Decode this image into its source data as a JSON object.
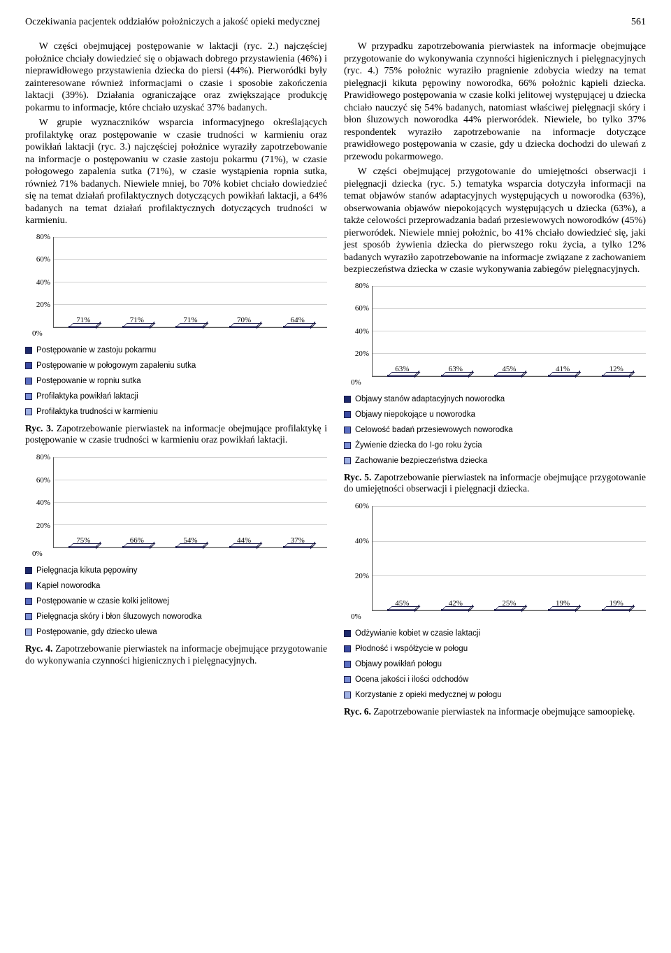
{
  "header": {
    "title": "Oczekiwania pacjentek oddziałów położniczych a jakość opieki medycznej",
    "page": "561"
  },
  "left": {
    "p1": "W części obejmującej postępowanie w laktacji (ryc. 2.) najczęściej położnice chciały dowiedzieć się o objawach dobrego przystawienia (46%) i nieprawidłowego przystawienia dziecka do piersi (44%). Pierworódki były zainteresowane również informacjami o czasie i sposobie zakończenia laktacji (39%). Działania ograniczające oraz zwiększające produkcję pokarmu to informacje, które chciało uzyskać 37% badanych.",
    "p2": "W grupie wyznaczników wsparcia informacyjnego określających profilaktykę oraz postępowanie w czasie trudności w karmieniu oraz powikłań laktacji (ryc. 3.) najczęściej położnice wyraziły zapotrzebowanie na informacje o postępowaniu w czasie zastoju pokarmu (71%), w czasie połogowego zapalenia sutka (71%), w czasie wystąpienia ropnia sutka, również 71% badanych. Niewiele mniej, bo 70% kobiet chciało dowiedzieć się na temat działań profilaktycznych dotyczących powikłań laktacji, a 64% badanych na temat działań profilaktycznych dotyczących trudności w karmieniu."
  },
  "right": {
    "p1": "W przypadku zapotrzebowania pierwiastek na informacje obejmujące przygotowanie do wykonywania czynności higienicznych i pielęgnacyjnych (ryc. 4.) 75% położnic wyraziło pragnienie zdobycia wiedzy na temat pielęgnacji kikuta pępowiny noworodka, 66% położnic kąpieli dziecka. Prawidłowego postępowania w czasie kolki jelitowej występującej u dziecka chciało nauczyć się 54% badanych, natomiast właściwej pielęgnacji skóry i błon śluzowych noworodka 44% pierworódek. Niewiele, bo tylko 37% respondentek wyraziło zapotrzebowanie na informacje dotyczące prawidłowego postępowania w czasie, gdy u dziecka dochodzi do ulewań z przewodu pokarmowego.",
    "p2": "W części obejmującej przygotowanie do umiejętności obserwacji i pielęgnacji dziecka (ryc. 5.) tematyka wsparcia dotyczyła informacji na temat objawów stanów adaptacyjnych występujących u noworodka (63%), obserwowania objawów niepokojących występujących u dziecka (63%), a także celowości przeprowadzania badań przesiewowych noworodków (45%) pierworódek. Niewiele mniej położnic, bo 41% chciało dowiedzieć się, jaki jest sposób żywienia dziecka do pierwszego roku życia, a tylko 12% badanych wyraziło zapotrzebowanie na informacje związane z zachowaniem bezpieczeństwa dziecka w czasie wykonywania zabiegów pielęgnacyjnych."
  },
  "chart3": {
    "type": "bar",
    "ymax": 80,
    "tick_step": 20,
    "ticks": [
      "0%",
      "20%",
      "40%",
      "60%",
      "80%"
    ],
    "bars": [
      {
        "label": "71%",
        "value": 71,
        "color": "#1d2a6b"
      },
      {
        "label": "71%",
        "value": 71,
        "color": "#3a4aa0"
      },
      {
        "label": "71%",
        "value": 71,
        "color": "#5b6fc2"
      },
      {
        "label": "70%",
        "value": 70,
        "color": "#7b8fd6"
      },
      {
        "label": "64%",
        "value": 64,
        "color": "#9fb1e4"
      }
    ],
    "legend": [
      {
        "color": "#1d2a6b",
        "label": "Postępowanie w zastoju pokarmu"
      },
      {
        "color": "#3a4aa0",
        "label": "Postępowanie w połogowym zapaleniu sutka"
      },
      {
        "color": "#5b6fc2",
        "label": "Postępowanie w ropniu sutka"
      },
      {
        "color": "#7b8fd6",
        "label": "Profilaktyka powikłań laktacji"
      },
      {
        "color": "#9fb1e4",
        "label": "Profilaktyka trudności w karmieniu"
      }
    ],
    "caption_bold": "Ryc. 3.",
    "caption": " Zapotrzebowanie pierwiastek na informacje obejmujące profilaktykę i postępowanie w czasie trudności w karmieniu oraz powikłań laktacji."
  },
  "chart4": {
    "type": "bar",
    "ymax": 80,
    "tick_step": 20,
    "ticks": [
      "0%",
      "20%",
      "40%",
      "60%",
      "80%"
    ],
    "bars": [
      {
        "label": "75%",
        "value": 75,
        "color": "#1d2a6b"
      },
      {
        "label": "66%",
        "value": 66,
        "color": "#3a4aa0"
      },
      {
        "label": "54%",
        "value": 54,
        "color": "#5b6fc2"
      },
      {
        "label": "44%",
        "value": 44,
        "color": "#7b8fd6"
      },
      {
        "label": "37%",
        "value": 37,
        "color": "#9fb1e4"
      }
    ],
    "legend": [
      {
        "color": "#1d2a6b",
        "label": "Pielęgnacja kikuta pępowiny"
      },
      {
        "color": "#3a4aa0",
        "label": "Kąpiel noworodka"
      },
      {
        "color": "#5b6fc2",
        "label": "Postępowanie w czasie kolki jelitowej"
      },
      {
        "color": "#7b8fd6",
        "label": "Pielęgnacja skóry i błon śluzowych noworodka"
      },
      {
        "color": "#9fb1e4",
        "label": "Postępowanie, gdy dziecko ulewa"
      }
    ],
    "caption_bold": "Ryc. 4.",
    "caption": " Zapotrzebowanie pierwiastek na informacje obejmujące przygotowanie do wykonywania czynności higienicznych i pielęgnacyjnych."
  },
  "chart5": {
    "type": "bar",
    "ymax": 80,
    "tick_step": 20,
    "ticks": [
      "0%",
      "20%",
      "40%",
      "60%",
      "80%"
    ],
    "bars": [
      {
        "label": "63%",
        "value": 63,
        "color": "#1d2a6b"
      },
      {
        "label": "63%",
        "value": 63,
        "color": "#3a4aa0"
      },
      {
        "label": "45%",
        "value": 45,
        "color": "#5b6fc2"
      },
      {
        "label": "41%",
        "value": 41,
        "color": "#7b8fd6"
      },
      {
        "label": "12%",
        "value": 12,
        "color": "#9fb1e4"
      }
    ],
    "legend": [
      {
        "color": "#1d2a6b",
        "label": "Objawy stanów adaptacyjnych noworodka"
      },
      {
        "color": "#3a4aa0",
        "label": "Objawy niepokojące u noworodka"
      },
      {
        "color": "#5b6fc2",
        "label": "Celowość badań przesiewowych noworodka"
      },
      {
        "color": "#7b8fd6",
        "label": "Żywienie dziecka do I-go roku życia"
      },
      {
        "color": "#9fb1e4",
        "label": "Zachowanie bezpieczeństwa dziecka"
      }
    ],
    "caption_bold": "Ryc. 5.",
    "caption": " Zapotrzebowanie pierwiastek na informacje obejmujące przygotowanie do umiejętności obserwacji i pielęgnacji dziecka."
  },
  "chart6": {
    "type": "bar",
    "ymax": 60,
    "tick_step": 20,
    "ticks": [
      "0%",
      "20%",
      "40%",
      "60%"
    ],
    "bars": [
      {
        "label": "45%",
        "value": 45,
        "color": "#1d2a6b"
      },
      {
        "label": "42%",
        "value": 42,
        "color": "#3a4aa0"
      },
      {
        "label": "25%",
        "value": 25,
        "color": "#5b6fc2"
      },
      {
        "label": "19%",
        "value": 19,
        "color": "#7b8fd6"
      },
      {
        "label": "19%",
        "value": 19,
        "color": "#9fb1e4"
      }
    ],
    "legend": [
      {
        "color": "#1d2a6b",
        "label": "Odżywianie kobiet w czasie laktacji"
      },
      {
        "color": "#3a4aa0",
        "label": "Płodność i współżycie w połogu"
      },
      {
        "color": "#5b6fc2",
        "label": "Objawy powikłań połogu"
      },
      {
        "color": "#7b8fd6",
        "label": "Ocena jakości i ilości odchodów"
      },
      {
        "color": "#9fb1e4",
        "label": "Korzystanie z opieki medycznej w połogu"
      }
    ],
    "caption_bold": "Ryc. 6.",
    "caption": " Zapotrzebowanie pierwiastek na informacje obejmujące samoopiekę."
  }
}
